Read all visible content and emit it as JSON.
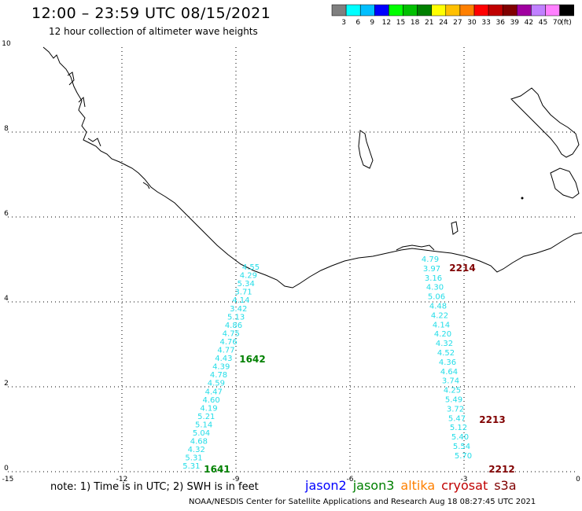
{
  "header": {
    "title": "12:00 – 23:59 UTC 08/15/2021",
    "subtitle": "12 hour collection of altimeter wave heights"
  },
  "colorbar": {
    "colors": [
      "#7f7f7f",
      "#00ffff",
      "#00bfff",
      "#0000ff",
      "#00ff00",
      "#00c000",
      "#008000",
      "#ffff00",
      "#ffc000",
      "#ff8000",
      "#ff0000",
      "#c00000",
      "#800000",
      "#a000a0",
      "#c080ff",
      "#ff80ff",
      "#000000"
    ],
    "labels": [
      "3",
      "6",
      "9",
      "12",
      "15",
      "18",
      "21",
      "24",
      "27",
      "30",
      "33",
      "36",
      "39",
      "42",
      "45",
      "70"
    ],
    "unit": "(ft)"
  },
  "axes": {
    "x_labels": [
      "-15",
      "-12",
      "-9",
      "-6",
      "-3",
      "0"
    ],
    "y_labels": [
      "0",
      "2",
      "4",
      "6",
      "8",
      "10"
    ]
  },
  "passes": [
    {
      "id": "1642",
      "color": "#008000",
      "values": [
        "4.55",
        "4.29",
        "5.34",
        "3.71",
        "4.14",
        "3.42",
        "5.13",
        "4.86",
        "4.75",
        "4.76",
        "4.77",
        "4.43",
        "4.39",
        "4.78",
        "4.59",
        "4.47",
        "4.60",
        "4.19",
        "5.21",
        "5.14",
        "5.04",
        "4.68",
        "4.32",
        "5.31",
        "5.31"
      ]
    },
    {
      "id": "1641",
      "color": "#008000"
    },
    {
      "id": "2214",
      "color": "#800000",
      "values": [
        "4.79",
        "3.97",
        "3.16",
        "4.30",
        "5.06",
        "4.48",
        "4.22",
        "4.14",
        "4.20",
        "4.32",
        "4.52",
        "4.36",
        "4.64",
        "3.74",
        "4.25",
        "5.49",
        "3.72",
        "5.47",
        "5.12",
        "5.40",
        "5.54",
        "5.70"
      ]
    },
    {
      "id": "2213",
      "color": "#800000"
    },
    {
      "id": "2212",
      "color": "#800000"
    }
  ],
  "note": "note: 1) Time is in UTC; 2) SWH is in feet",
  "satellites": [
    {
      "name": "jason2",
      "color": "#0000ff"
    },
    {
      "name": "jason3",
      "color": "#008000"
    },
    {
      "name": "altika",
      "color": "#ff8000"
    },
    {
      "name": "cryosat",
      "color": "#c00000"
    },
    {
      "name": "s3a",
      "color": "#800000"
    }
  ],
  "footer": "NOAA/NESDIS Center for Satellite Applications and Research   Aug 18 08:27:45 UTC 2021"
}
